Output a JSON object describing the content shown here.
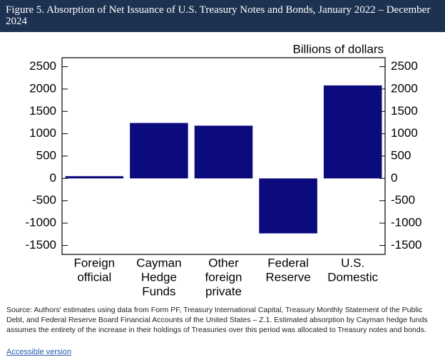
{
  "header": {
    "title": "Figure 5. Absorption of Net Issuance of U.S. Treasury Notes and Bonds, January 2022 – December 2024"
  },
  "chart_data": {
    "type": "bar",
    "unit_label": "Billions of dollars",
    "categories": [
      [
        "Foreign",
        "official"
      ],
      [
        "Cayman",
        "Hedge",
        "Funds"
      ],
      [
        "Other",
        "foreign",
        "private"
      ],
      [
        "Federal",
        "Reserve"
      ],
      [
        "U.S.",
        "Domestic"
      ]
    ],
    "values": [
      50,
      1240,
      1180,
      -1230,
      2080
    ],
    "color": "#0b0b7d",
    "ylim": [
      -1700,
      2700
    ],
    "yticks": [
      -1500,
      -1000,
      -500,
      0,
      500,
      1000,
      1500,
      2000,
      2500
    ],
    "grid": false
  },
  "footer": {
    "source": "Source: Authors' estimates using data from Form PF, Treasury International Capital, Treasury Monthly Statement of the Public Debt, and Federal Reserve Board Financial Accounts of the United States – Z.1. Estimated absorption by Cayman hedge funds assumes the entirety of the increase in their holdings of Treasuries over this period was allocated to Treasury notes and bonds.",
    "link": "Accessible version"
  }
}
